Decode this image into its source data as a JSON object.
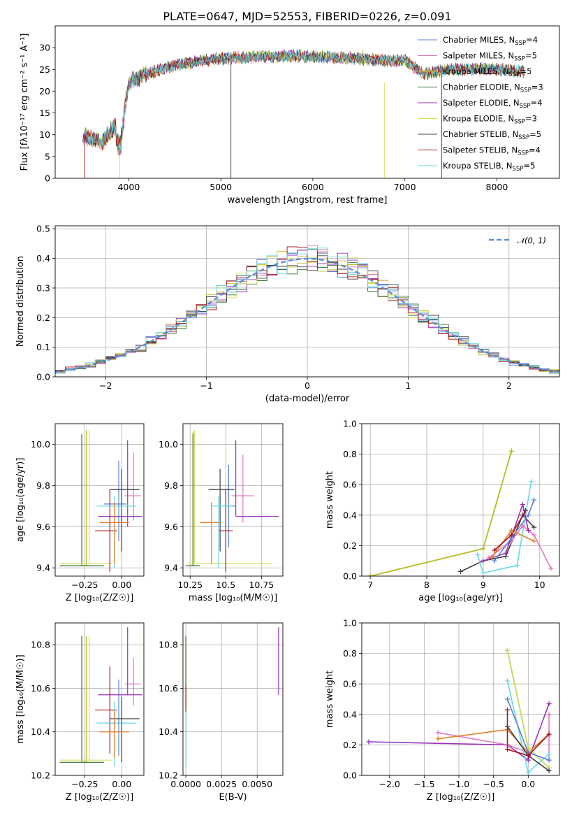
{
  "figure": {
    "title": "PLATE=0647, MJD=52553, FIBERID=0226, z=0.091"
  },
  "colors": {
    "Chabrier MILES": "#5b83d9",
    "Salpeter MILES": "#e377c2",
    "Kroupa MILES": "#bcbd22",
    "Chabrier ELODIE": "#2e6b2e",
    "Salpeter ELODIE": "#9b30c0",
    "Kroupa ELODIE": "#d4e157",
    "Chabrier STELIB": "#404040",
    "Salpeter STELIB": "#b01515",
    "Kroupa STELIB": "#66d9e8",
    "extra_orange": "#e67e22",
    "normal_curve": "#5b8fd6",
    "grid": "#b0b0b0"
  },
  "chart_data": [
    {
      "id": "spectrum",
      "type": "line",
      "xlabel": "wavelength [Angstrom, rest frame]",
      "ylabel": "Flux [fλ10⁻¹⁷ erg cm⁻² s⁻¹ A⁻¹]",
      "xlim": [
        3200,
        8680
      ],
      "ylim": [
        0,
        35
      ],
      "xticks": [
        4000,
        5000,
        6000,
        7000,
        8000
      ],
      "yticks": [
        0,
        5,
        10,
        15,
        20,
        25,
        30
      ],
      "grid": false,
      "legend_position": "top-right",
      "legend": [
        {
          "label": "Chabrier MILES, N",
          "sub": "SSP",
          "eq": "=4"
        },
        {
          "label": "Salpeter MILES, N",
          "sub": "SSP",
          "eq": "=5"
        },
        {
          "label": "Kroupa MILES, N",
          "sub": "SSP",
          "eq": "=5"
        },
        {
          "label": "Chabrier ELODIE, N",
          "sub": "SSP",
          "eq": "=3"
        },
        {
          "label": "Salpeter ELODIE, N",
          "sub": "SSP",
          "eq": "=4"
        },
        {
          "label": "Kroupa ELODIE, N",
          "sub": "SSP",
          "eq": "=3"
        },
        {
          "label": "Chabrier STELIB, N",
          "sub": "SSP",
          "eq": "=5"
        },
        {
          "label": "Salpeter STELIB, N",
          "sub": "SSP",
          "eq": "=4"
        },
        {
          "label": "Kroupa STELIB, N",
          "sub": "SSP",
          "eq": "=5"
        }
      ],
      "continuum": {
        "x": [
          3500,
          3700,
          3850,
          3900,
          4000,
          4200,
          4500,
          5000,
          5500,
          6000,
          6500,
          6800,
          7000,
          7200,
          7500,
          8000,
          8300
        ],
        "y": [
          10,
          8,
          12,
          8,
          22,
          24,
          26,
          27.5,
          28,
          28,
          27.5,
          27,
          27,
          24,
          25,
          25,
          24.5
        ]
      },
      "drops": [
        {
          "series": "Salpeter STELIB",
          "x": 3520,
          "y_from": 10,
          "y_to": 0
        },
        {
          "series": "Kroupa ELODIE",
          "x": 3900,
          "y_from": 8,
          "y_to": 0
        },
        {
          "series": "Chabrier STELIB",
          "x": 5110,
          "y_from": 27,
          "y_to": 0
        },
        {
          "series": "Kroupa ELODIE",
          "x": 6780,
          "y_from": 22,
          "y_to": 0
        },
        {
          "series": "Salpeter STELIB",
          "x": 7400,
          "y_from": 24,
          "y_to": 0
        },
        {
          "series": "Kroupa MILES",
          "x": 6540,
          "y_from": 27,
          "y_to": 29.5
        }
      ]
    },
    {
      "id": "residuals",
      "type": "histogram",
      "xlabel": "(data-model)/error",
      "ylabel": "Normed distribution",
      "xlim": [
        -2.5,
        2.5
      ],
      "ylim": [
        0,
        0.51
      ],
      "xticks": [
        -2,
        -1,
        0,
        1,
        2
      ],
      "yticks": [
        0.0,
        0.1,
        0.2,
        0.3,
        0.4,
        0.5
      ],
      "grid": true,
      "legend_position": "top-right",
      "legend": [
        {
          "label": "𝒩(0, 1)"
        }
      ],
      "bin_width": 0.1,
      "normal": {
        "mean": 0,
        "sigma": 1
      }
    },
    {
      "id": "age_vs_Z",
      "type": "errorbar",
      "xlabel": "Z [log₁₀(Z/Z☉)]",
      "ylabel": "age  [log₁₀(age/yr)]",
      "xlim": [
        -0.45,
        0.15
      ],
      "ylim": [
        9.36,
        10.1
      ],
      "xticks": [
        -0.25,
        0.0
      ],
      "xticklabels": [
        "−0.25",
        "0.00"
      ],
      "yticks": [
        9.4,
        9.6,
        9.8,
        10.0
      ],
      "grid": true,
      "points": [
        {
          "s": "Chabrier MILES",
          "x": -0.02,
          "xerr": [
            0.1,
            0.05
          ],
          "y": 9.71,
          "yerr": [
            0.18,
            0.21
          ]
        },
        {
          "s": "Salpeter MILES",
          "x": 0.08,
          "xerr": [
            0.06,
            0.05
          ],
          "y": 9.75,
          "yerr": [
            0.12,
            0.21
          ]
        },
        {
          "s": "Kroupa MILES",
          "x": -0.24,
          "xerr": [
            0.02,
            0.02
          ],
          "y": 9.41,
          "yerr": [
            0.0,
            0.66
          ]
        },
        {
          "s": "Chabrier ELODIE",
          "x": -0.27,
          "xerr": [
            0.15,
            0.15
          ],
          "y": 9.41,
          "yerr": [
            0.0,
            0.64
          ]
        },
        {
          "s": "Salpeter ELODIE",
          "x": 0.04,
          "xerr": [
            0.2,
            0.1
          ],
          "y": 9.65,
          "yerr": [
            0.05,
            0.37
          ]
        },
        {
          "s": "Kroupa ELODIE",
          "x": -0.22,
          "xerr": [
            0.2,
            0.15
          ],
          "y": 9.42,
          "yerr": [
            0.0,
            0.65
          ]
        },
        {
          "s": "Chabrier STELIB",
          "x": 0.0,
          "xerr": [
            0.08,
            0.12
          ],
          "y": 9.78,
          "yerr": [
            0.3,
            0.1
          ]
        },
        {
          "s": "Salpeter STELIB",
          "x": -0.08,
          "xerr": [
            0.1,
            0.05
          ],
          "y": 9.58,
          "yerr": [
            0.2,
            0.2
          ]
        },
        {
          "s": "Kroupa STELIB",
          "x": -0.05,
          "xerr": [
            0.12,
            0.15
          ],
          "y": 9.7,
          "yerr": [
            0.3,
            0.05
          ]
        },
        {
          "s": "extra_orange",
          "x": -0.05,
          "xerr": [
            0.1,
            0.1
          ],
          "y": 9.62,
          "yerr": [
            0.2,
            0.1
          ]
        }
      ]
    },
    {
      "id": "age_vs_mass",
      "type": "errorbar",
      "xlabel": "mass [log₁₀(M/M☉)]",
      "ylabel": "",
      "xlim": [
        10.2,
        10.9
      ],
      "ylim": [
        9.36,
        10.1
      ],
      "xticks": [
        10.25,
        10.5,
        10.75
      ],
      "yticks": [
        9.4,
        9.6,
        9.8,
        10.0
      ],
      "grid": true,
      "points": [
        {
          "s": "Chabrier MILES",
          "x": 10.52,
          "xerr": [
            0.05,
            0.05
          ],
          "y": 9.7,
          "yerr": [
            0.2,
            0.2
          ]
        },
        {
          "s": "Salpeter MILES",
          "x": 10.62,
          "xerr": [
            0.08,
            0.08
          ],
          "y": 9.75,
          "yerr": [
            0.13,
            0.2
          ]
        },
        {
          "s": "Kroupa MILES",
          "x": 10.27,
          "xerr": [
            0.02,
            0.02
          ],
          "y": 9.41,
          "yerr": [
            0.0,
            0.65
          ]
        },
        {
          "s": "Chabrier ELODIE",
          "x": 10.27,
          "xerr": [
            0.05,
            0.05
          ],
          "y": 9.41,
          "yerr": [
            0.0,
            0.64
          ]
        },
        {
          "s": "Salpeter ELODIE",
          "x": 10.57,
          "xerr": [
            0.0,
            0.3
          ],
          "y": 9.65,
          "yerr": [
            0.0,
            0.37
          ]
        },
        {
          "s": "Kroupa ELODIE",
          "x": 10.28,
          "xerr": [
            0.05,
            0.55
          ],
          "y": 9.42,
          "yerr": [
            0.0,
            0.65
          ]
        },
        {
          "s": "Chabrier STELIB",
          "x": 10.46,
          "xerr": [
            0.08,
            0.1
          ],
          "y": 9.78,
          "yerr": [
            0.3,
            0.1
          ]
        },
        {
          "s": "Salpeter STELIB",
          "x": 10.5,
          "xerr": [
            0.05,
            0.05
          ],
          "y": 9.58,
          "yerr": [
            0.2,
            0.2
          ]
        },
        {
          "s": "Kroupa STELIB",
          "x": 10.45,
          "xerr": [
            0.05,
            0.1
          ],
          "y": 9.7,
          "yerr": [
            0.3,
            0.05
          ]
        },
        {
          "s": "extra_orange",
          "x": 10.4,
          "xerr": [
            0.08,
            0.05
          ],
          "y": 9.62,
          "yerr": [
            0.2,
            0.1
          ]
        }
      ]
    },
    {
      "id": "mw_vs_age",
      "type": "line",
      "xlabel": "age  [log₁₀(age/yr)]",
      "ylabel": "mass weight",
      "xlim": [
        6.85,
        10.35
      ],
      "ylim": [
        0,
        1
      ],
      "xticks": [
        7,
        8,
        9,
        10
      ],
      "yticks": [
        0.0,
        0.2,
        0.4,
        0.6,
        0.8,
        1.0
      ],
      "grid": true,
      "series": [
        {
          "s": "Chabrier ELODIE",
          "x": [
            7.0,
            9.0,
            9.5
          ],
          "y": [
            0.0,
            0.18,
            0.82
          ]
        },
        {
          "s": "Kroupa ELODIE",
          "x": [
            7.0,
            9.0,
            9.5
          ],
          "y": [
            0.0,
            0.18,
            0.82
          ]
        },
        {
          "s": "Kroupa MILES",
          "x": [
            7.0,
            9.0,
            9.5
          ],
          "y": [
            0.0,
            0.18,
            0.82
          ]
        },
        {
          "s": "Chabrier STELIB",
          "x": [
            8.6,
            9.0,
            9.4,
            9.7,
            9.9
          ],
          "y": [
            0.03,
            0.1,
            0.13,
            0.4,
            0.32
          ]
        },
        {
          "s": "Kroupa STELIB",
          "x": [
            8.9,
            9.0,
            9.6,
            9.85
          ],
          "y": [
            0.14,
            0.02,
            0.07,
            0.62
          ]
        },
        {
          "s": "Salpeter MILES",
          "x": [
            9.1,
            9.5,
            9.7,
            9.9,
            10.2
          ],
          "y": [
            0.12,
            0.23,
            0.33,
            0.27,
            0.05
          ]
        },
        {
          "s": "Salpeter ELODIE",
          "x": [
            9.0,
            9.4,
            9.7,
            9.8
          ],
          "y": [
            0.1,
            0.15,
            0.47,
            0.3
          ]
        },
        {
          "s": "Chabrier MILES",
          "x": [
            9.2,
            9.5,
            9.8,
            9.9
          ],
          "y": [
            0.1,
            0.25,
            0.4,
            0.5
          ]
        },
        {
          "s": "extra_orange",
          "x": [
            9.15,
            9.5,
            9.9
          ],
          "y": [
            0.12,
            0.3,
            0.23
          ]
        },
        {
          "s": "Salpeter STELIB",
          "x": [
            9.2,
            9.5,
            9.75
          ],
          "y": [
            0.17,
            0.27,
            0.43
          ]
        }
      ]
    },
    {
      "id": "mass_vs_Z",
      "type": "errorbar",
      "xlabel": "Z [log₁₀(Z/Z☉)]",
      "ylabel": "mass [log₁₀(M/M☉)]",
      "xlim": [
        -0.45,
        0.15
      ],
      "ylim": [
        10.2,
        10.9
      ],
      "xticks": [
        -0.25,
        0.0
      ],
      "xticklabels": [
        "−0.25",
        "0.00"
      ],
      "yticks": [
        10.2,
        10.4,
        10.6,
        10.8
      ],
      "grid": true,
      "points": [
        {
          "s": "Chabrier MILES",
          "x": -0.02,
          "xerr": [
            0.1,
            0.05
          ],
          "y": 10.44,
          "yerr": [
            0.15,
            0.2
          ]
        },
        {
          "s": "Salpeter MILES",
          "x": 0.08,
          "xerr": [
            0.06,
            0.05
          ],
          "y": 10.62,
          "yerr": [
            0.1,
            0.12
          ]
        },
        {
          "s": "Kroupa MILES",
          "x": -0.24,
          "xerr": [
            0.02,
            0.02
          ],
          "y": 10.26,
          "yerr": [
            0.0,
            0.58
          ]
        },
        {
          "s": "Chabrier ELODIE",
          "x": -0.27,
          "xerr": [
            0.15,
            0.15
          ],
          "y": 10.26,
          "yerr": [
            0.0,
            0.58
          ]
        },
        {
          "s": "Salpeter ELODIE",
          "x": 0.04,
          "xerr": [
            0.2,
            0.1
          ],
          "y": 10.57,
          "yerr": [
            0.0,
            0.31
          ]
        },
        {
          "s": "Kroupa ELODIE",
          "x": -0.22,
          "xerr": [
            0.2,
            0.15
          ],
          "y": 10.27,
          "yerr": [
            0.0,
            0.57
          ]
        },
        {
          "s": "Chabrier STELIB",
          "x": 0.0,
          "xerr": [
            0.08,
            0.12
          ],
          "y": 10.46,
          "yerr": [
            0.2,
            0.1
          ]
        },
        {
          "s": "Salpeter STELIB",
          "x": -0.08,
          "xerr": [
            0.1,
            0.05
          ],
          "y": 10.5,
          "yerr": [
            0.2,
            0.2
          ]
        },
        {
          "s": "Kroupa STELIB",
          "x": -0.05,
          "xerr": [
            0.12,
            0.15
          ],
          "y": 10.44,
          "yerr": [
            0.2,
            0.1
          ]
        },
        {
          "s": "extra_orange",
          "x": -0.05,
          "xerr": [
            0.1,
            0.1
          ],
          "y": 10.4,
          "yerr": [
            0.12,
            0.1
          ]
        }
      ]
    },
    {
      "id": "mass_vs_ebv",
      "type": "errorbar",
      "xlabel": "E(B-V)",
      "ylabel": "",
      "xlim": [
        -0.0002,
        0.0068
      ],
      "ylim": [
        10.2,
        10.9
      ],
      "xticks": [
        0.0,
        0.0025,
        0.005
      ],
      "xticklabels": [
        "0.0000",
        "0.0025",
        "0.0050"
      ],
      "yticks": [
        10.2,
        10.4,
        10.6,
        10.8
      ],
      "grid": true,
      "points": [
        {
          "s": "Kroupa ELODIE",
          "x": 0.0,
          "xerr": [
            0,
            0
          ],
          "y": 10.27,
          "yerr": [
            0.0,
            0.57
          ]
        },
        {
          "s": "Chabrier ELODIE",
          "x": 0.0,
          "xerr": [
            0,
            0
          ],
          "y": 10.26,
          "yerr": [
            0.0,
            0.58
          ]
        },
        {
          "s": "Salpeter STELIB",
          "x": 0.0,
          "xerr": [
            0,
            0
          ],
          "y": 10.5,
          "yerr": [
            0.0,
            0.12
          ]
        },
        {
          "s": "Kroupa STELIB",
          "x": 0.0,
          "xerr": [
            0,
            0
          ],
          "y": 10.35,
          "yerr": [
            0.12,
            0.14
          ]
        },
        {
          "s": "Salpeter ELODIE",
          "x": 0.0065,
          "xerr": [
            0,
            0
          ],
          "y": 10.57,
          "yerr": [
            0.0,
            0.31
          ]
        }
      ]
    },
    {
      "id": "mw_vs_Z",
      "type": "line",
      "xlabel": "Z [log₁₀(Z/Z☉)]",
      "ylabel": "mass weight",
      "xlim": [
        -2.4,
        0.45
      ],
      "ylim": [
        0,
        1
      ],
      "xticks": [
        -2.0,
        -1.5,
        -1.0,
        -0.5,
        0.0
      ],
      "xticklabels": [
        "−2.0",
        "−1.5",
        "−1.0",
        "−0.5",
        "0.0"
      ],
      "yticks": [
        0.0,
        0.2,
        0.4,
        0.6,
        0.8,
        1.0
      ],
      "grid": true,
      "series": [
        {
          "s": "Salpeter ELODIE",
          "x": [
            -2.3,
            -0.3,
            0.0,
            0.3
          ],
          "y": [
            0.22,
            0.2,
            0.1,
            0.47
          ]
        },
        {
          "s": "Salpeter MILES",
          "x": [
            -1.3,
            -0.3,
            0.3,
            0.3
          ],
          "y": [
            0.28,
            0.2,
            0.1,
            0.4
          ]
        },
        {
          "s": "extra_orange",
          "x": [
            -1.3,
            -0.3,
            0.0,
            0.3
          ],
          "y": [
            0.24,
            0.3,
            0.15,
            0.27
          ]
        },
        {
          "s": "Chabrier ELODIE",
          "x": [
            -0.3,
            0.0,
            0.3
          ],
          "y": [
            0.82,
            0.18,
            0.05
          ]
        },
        {
          "s": "Kroupa ELODIE",
          "x": [
            -0.3,
            0.0,
            0.3
          ],
          "y": [
            0.82,
            0.18,
            0.05
          ]
        },
        {
          "s": "Kroupa STELIB",
          "x": [
            -0.3,
            0.0,
            0.3
          ],
          "y": [
            0.62,
            0.02,
            0.14
          ]
        },
        {
          "s": "Chabrier MILES",
          "x": [
            -0.3,
            0.0,
            0.3
          ],
          "y": [
            0.5,
            0.15,
            0.1
          ]
        },
        {
          "s": "Chabrier STELIB",
          "x": [
            -0.3,
            0.0,
            0.3
          ],
          "y": [
            0.32,
            0.13,
            0.03
          ]
        },
        {
          "s": "Salpeter STELIB",
          "x": [
            -0.3,
            -0.3,
            0.0,
            0.3
          ],
          "y": [
            0.43,
            0.17,
            0.13,
            0.27
          ]
        }
      ]
    }
  ]
}
